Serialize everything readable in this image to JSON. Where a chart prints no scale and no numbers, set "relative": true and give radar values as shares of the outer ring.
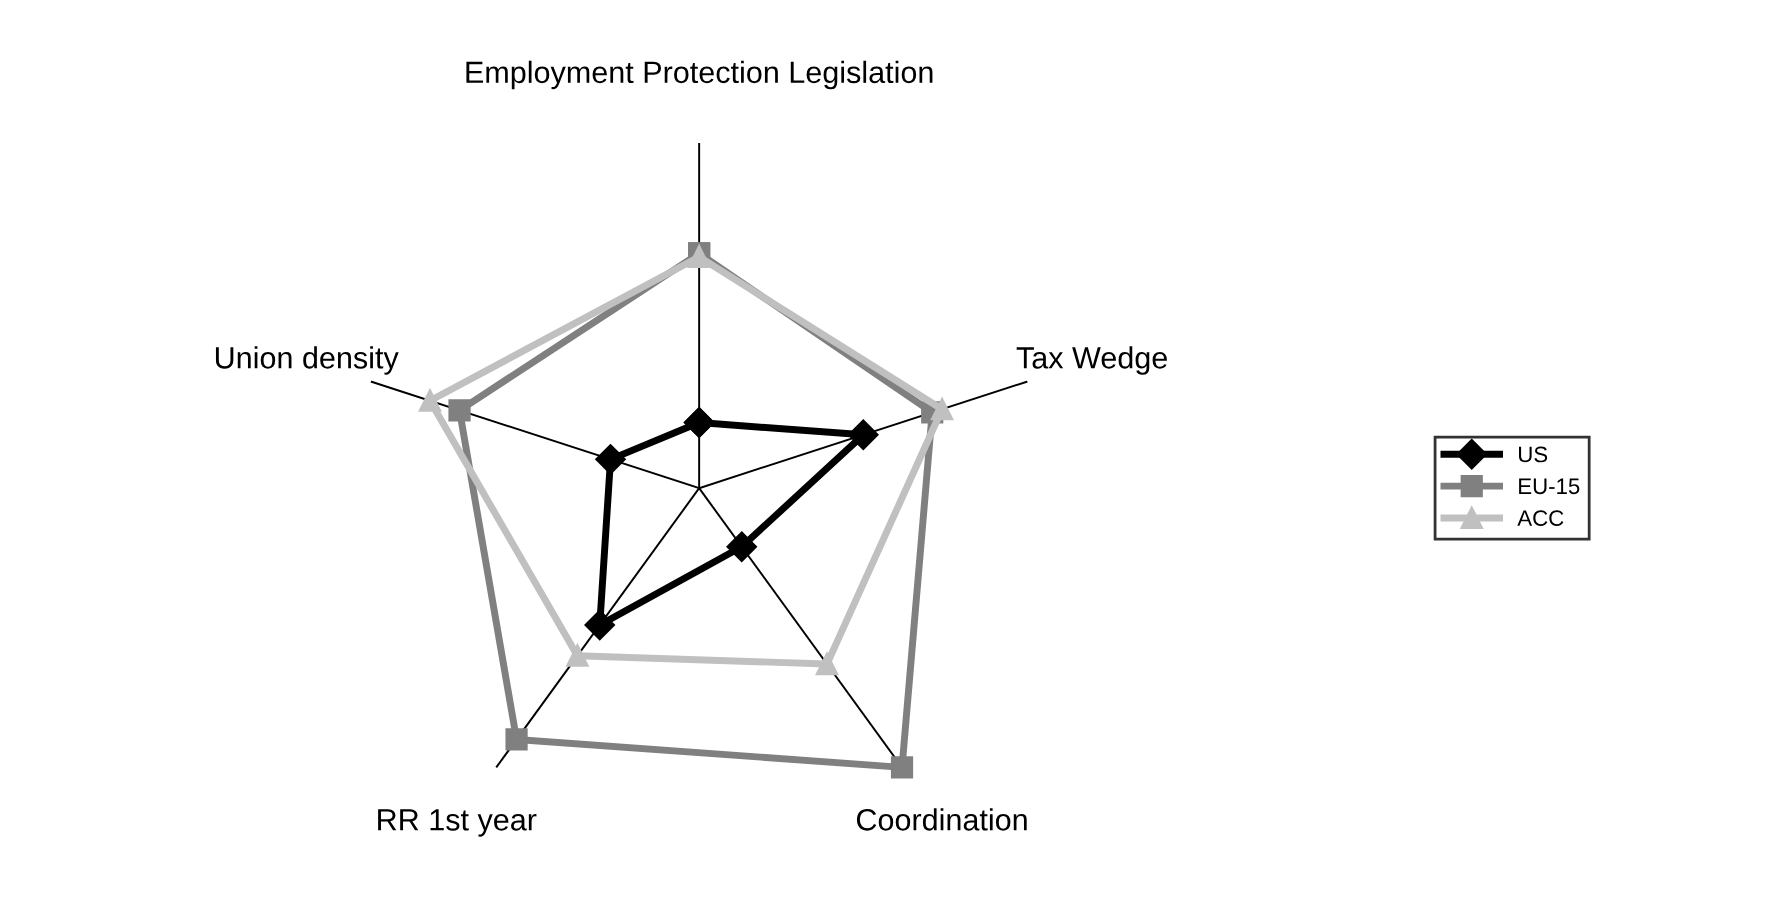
{
  "chart_data": {
    "type": "radar",
    "relative": true,
    "grid": "x",
    "legend": "right",
    "categories": [
      "Employment Protection Legislation",
      "Tax Wedge",
      "Coordination",
      "RR 1st year",
      "Union density"
    ],
    "series": [
      {
        "name": "US",
        "color": "#000000",
        "marker": "diamond",
        "values": [
          0.19,
          0.5,
          0.21,
          0.49,
          0.27
        ]
      },
      {
        "name": "EU-15",
        "color": "#808080",
        "marker": "square",
        "values": [
          0.68,
          0.71,
          1.0,
          0.9,
          0.73
        ]
      },
      {
        "name": "ACC",
        "color": "#c0c0c0",
        "marker": "triangle",
        "values": [
          0.67,
          0.74,
          0.63,
          0.6,
          0.82
        ]
      }
    ]
  }
}
